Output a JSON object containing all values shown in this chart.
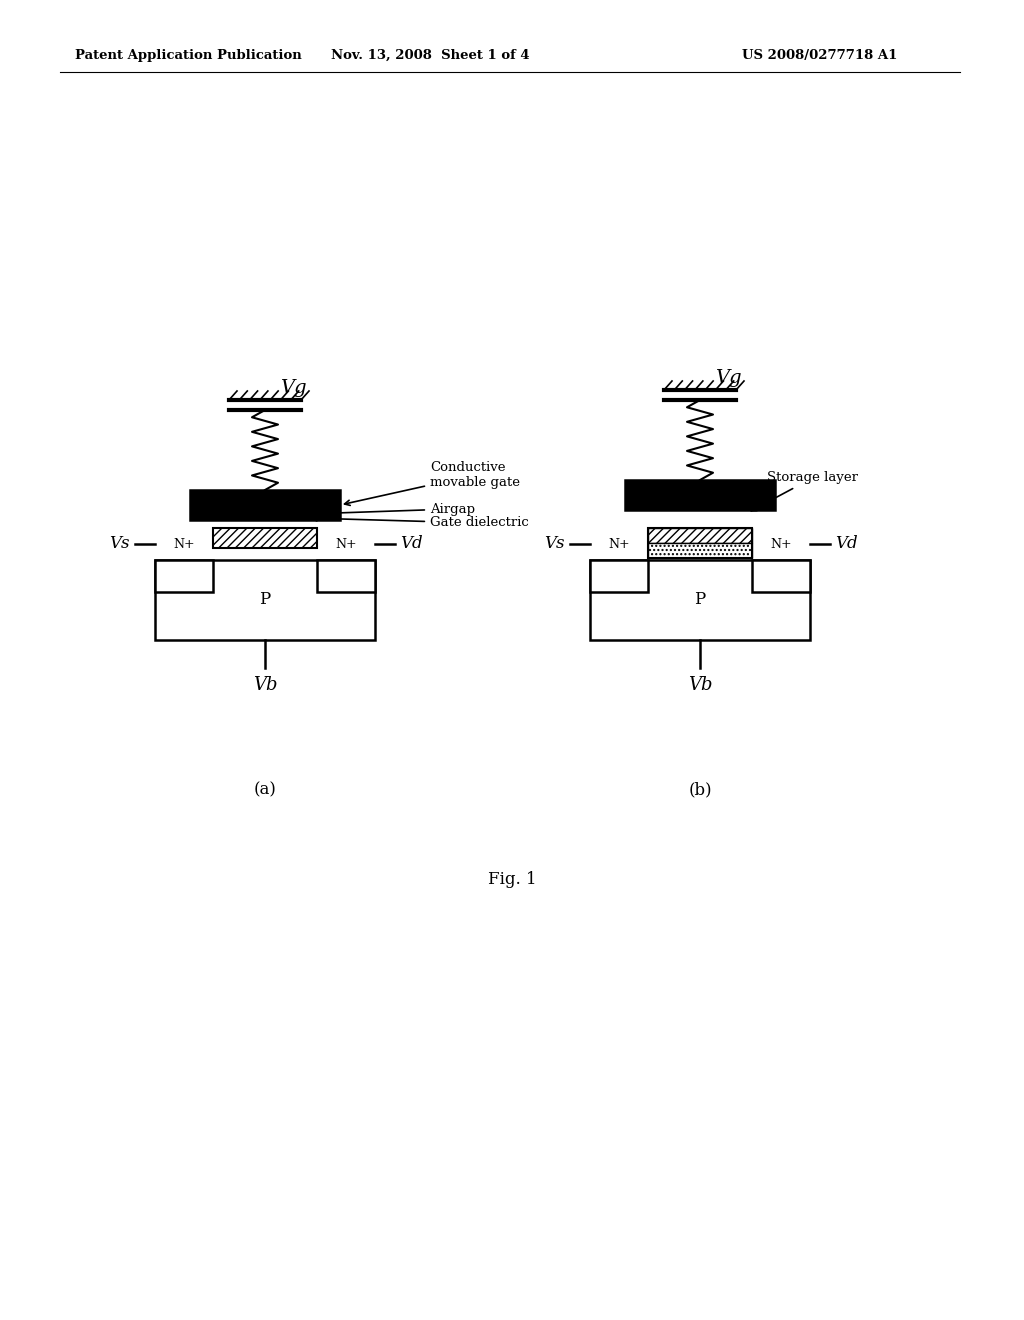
{
  "bg_color": "#ffffff",
  "header_left": "Patent Application Publication",
  "header_mid": "Nov. 13, 2008  Sheet 1 of 4",
  "header_right": "US 2008/0277718 A1",
  "fig_label": "Fig. 1",
  "caption_a": "(a)",
  "caption_b": "(b)",
  "label_Vg": "Vg",
  "label_Vs": "Vs",
  "label_Vd": "Vd",
  "label_Vb": "Vb",
  "label_P": "P",
  "label_Np": "N+",
  "label_conductive": "Conductive\nmovable gate",
  "label_airgap": "Airgap",
  "label_gate_dielectric": "Gate dielectric",
  "label_storage": "Storage layer"
}
